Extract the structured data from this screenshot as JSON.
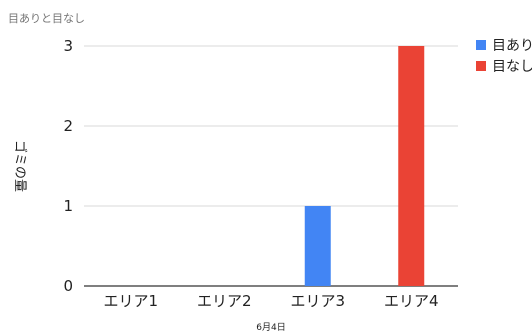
{
  "chart_data": {
    "type": "bar",
    "title": "目ありと目なし",
    "xlabel": "6月4日",
    "ylabel": "ゴミの量",
    "categories": [
      "エリア1",
      "エリア2",
      "エリア3",
      "エリア4"
    ],
    "series": [
      {
        "name": "目あり",
        "values": [
          0,
          0,
          1,
          0
        ],
        "color": "#4285f4"
      },
      {
        "name": "目なし",
        "values": [
          0,
          0,
          0,
          3
        ],
        "color": "#ea4335"
      }
    ],
    "ylim": [
      0,
      3
    ],
    "yticks": [
      0,
      1,
      2,
      3
    ],
    "grid": true,
    "legend": "right"
  }
}
